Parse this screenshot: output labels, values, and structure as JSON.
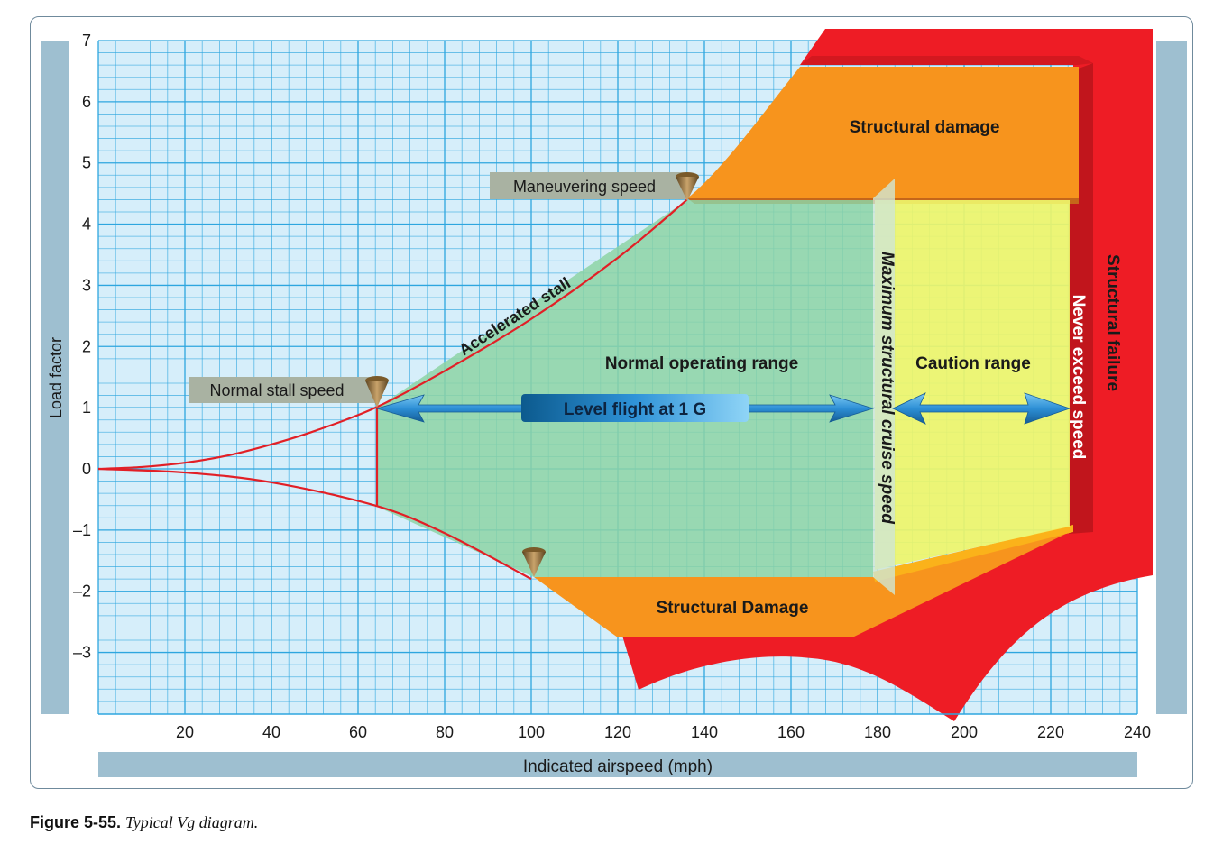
{
  "chart_data": {
    "type": "line",
    "xlabel": "Indicated airspeed (mph)",
    "ylabel": "Load factor",
    "xlim": [
      0,
      240
    ],
    "ylim": [
      -4,
      7
    ],
    "x_ticks": [
      20,
      40,
      60,
      80,
      100,
      120,
      140,
      160,
      180,
      200,
      220,
      240
    ],
    "y_ticks": [
      7,
      6,
      5,
      4,
      3,
      2,
      1,
      0,
      -1,
      -2,
      -3
    ],
    "y_tick_labels": [
      "7",
      "6",
      "5",
      "4",
      "3",
      "2",
      "1",
      "0",
      "–1",
      "–2",
      "–3"
    ],
    "grid": true,
    "series": [
      {
        "name": "Accelerated stall",
        "x": [
          0,
          10,
          20,
          30,
          40,
          50,
          64,
          80,
          100,
          120,
          136
        ],
        "y": [
          0,
          0.03,
          0.1,
          0.22,
          0.4,
          0.62,
          1.0,
          1.6,
          2.45,
          3.45,
          4.4
        ]
      },
      {
        "name": "",
        "x": [
          0,
          20,
          40,
          64,
          80,
          100
        ],
        "y": [
          0,
          -0.06,
          -0.22,
          -0.6,
          -1.05,
          -1.8
        ]
      }
    ],
    "regions": {
      "normal": "Normal operating range",
      "caution": "Caution range",
      "damage_top": "Structural damage",
      "damage_bottom": "Structural Damage",
      "failure": "Structural  failure"
    },
    "markers": {
      "stall": {
        "label": "Normal stall speed",
        "x": 64,
        "y": 1
      },
      "maneuvering": {
        "label": "Maneuvering speed",
        "x": 136,
        "y": 4.4
      },
      "negative_limit": {
        "x": 100,
        "y": -1.8
      }
    },
    "annotations": {
      "accelerated_stall": "Accelerated stall",
      "level_flight": "Level flight at 1 G",
      "vno": "Maximum structural cruise speed",
      "vne": "Never exceed speed"
    },
    "colors": {
      "grid_bg": "#d6eefa",
      "grid_line": "#2ea6df",
      "normal": "#8dd3a5",
      "caution": "#eef56a",
      "damage": "#f7941d",
      "failure": "#ee1c25",
      "failure_dark": "#c1151c",
      "stall_line": "#e21f26",
      "arrow": "#1f7fc6",
      "axis_band": "#9ebfd0",
      "label_box": "#a9b2a2"
    }
  },
  "caption": {
    "label": "Figure 5-55.",
    "text": "Typical Vg diagram."
  }
}
